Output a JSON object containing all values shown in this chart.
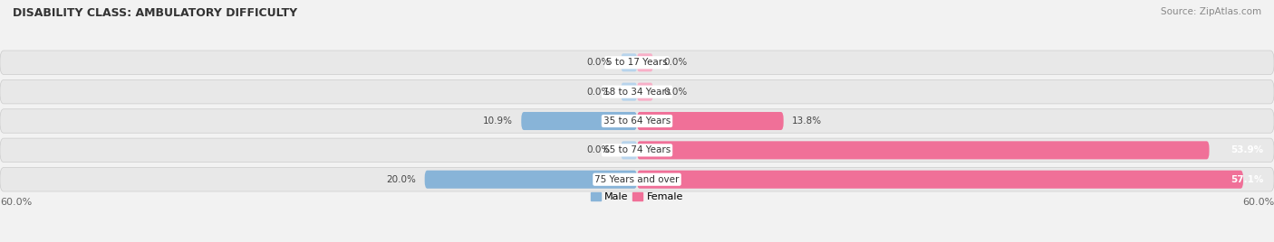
{
  "title": "DISABILITY CLASS: AMBULATORY DIFFICULTY",
  "source": "Source: ZipAtlas.com",
  "categories": [
    "5 to 17 Years",
    "18 to 34 Years",
    "35 to 64 Years",
    "65 to 74 Years",
    "75 Years and over"
  ],
  "male_values": [
    0.0,
    0.0,
    10.9,
    0.0,
    20.0
  ],
  "female_values": [
    0.0,
    0.0,
    13.8,
    53.9,
    57.1
  ],
  "x_max": 60.0,
  "male_color": "#88b4d8",
  "female_color": "#f07098",
  "male_color_light": "#b8d4ec",
  "female_color_light": "#f8b0c8",
  "row_bg_color": "#e8e8e8",
  "row_outline_color": "#d0d0d0",
  "label_color": "#444444",
  "title_color": "#333333",
  "source_color": "#888888",
  "axis_label_color": "#666666",
  "legend_male_color": "#88b4d8",
  "legend_female_color": "#f07098"
}
